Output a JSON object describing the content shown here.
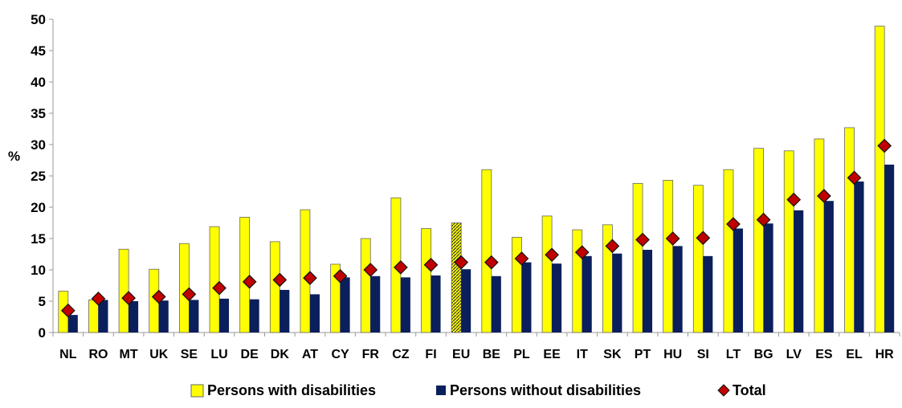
{
  "chart_data": {
    "type": "bar",
    "ylabel": "%",
    "ylim": [
      0,
      50
    ],
    "yticks": [
      0,
      5,
      10,
      15,
      20,
      25,
      30,
      35,
      40,
      45,
      50
    ],
    "grid": false,
    "legend_position": "bottom",
    "categories": [
      "NL",
      "RO",
      "MT",
      "UK",
      "SE",
      "LU",
      "DE",
      "DK",
      "AT",
      "CY",
      "FR",
      "CZ",
      "FI",
      "EU",
      "BE",
      "PL",
      "EE",
      "IT",
      "SK",
      "PT",
      "HU",
      "SI",
      "LT",
      "BG",
      "LV",
      "ES",
      "EL",
      "HR"
    ],
    "highlight_category": "EU",
    "series": [
      {
        "name": "Persons with disabilities",
        "kind": "bar",
        "color": "#ffff00",
        "values": [
          6.6,
          5.2,
          13.3,
          10.1,
          14.2,
          16.9,
          18.4,
          14.5,
          19.6,
          10.9,
          15.0,
          21.5,
          16.6,
          17.5,
          26.0,
          15.2,
          18.6,
          16.4,
          17.2,
          23.8,
          24.3,
          23.5,
          26.0,
          29.4,
          29.0,
          30.9,
          32.7,
          48.9
        ]
      },
      {
        "name": "Persons without disabilities",
        "kind": "bar",
        "color": "#0a1f5c",
        "values": [
          2.8,
          5.2,
          5.0,
          5.1,
          5.2,
          5.4,
          5.3,
          6.8,
          6.1,
          8.8,
          9.0,
          8.8,
          9.1,
          10.1,
          9.0,
          11.2,
          11.0,
          12.2,
          12.6,
          13.2,
          13.8,
          12.2,
          16.6,
          17.4,
          19.5,
          21.0,
          24.1,
          26.8
        ]
      },
      {
        "name": "Total",
        "kind": "marker",
        "color": "#c00000",
        "values": [
          3.5,
          5.4,
          5.5,
          5.7,
          6.1,
          7.1,
          8.1,
          8.4,
          8.7,
          9.0,
          10.0,
          10.4,
          10.8,
          11.2,
          11.2,
          11.8,
          12.4,
          12.8,
          13.8,
          14.8,
          15.0,
          15.1,
          17.3,
          18.0,
          21.2,
          21.8,
          24.7,
          29.8
        ]
      }
    ]
  }
}
